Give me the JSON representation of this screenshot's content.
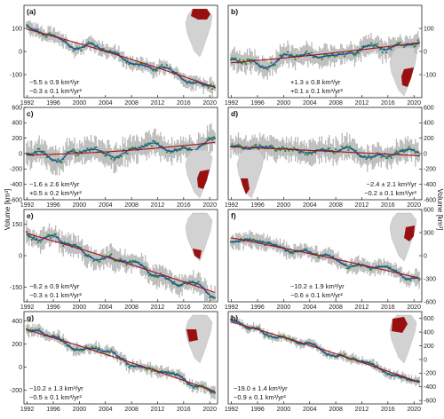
{
  "figure": {
    "y_label_left": "Volume [km³]",
    "y_label_right": "Volume [km³]"
  },
  "colors": {
    "errorbar": "#b8b8b8",
    "points": "#2e8b2e",
    "smooth": "#1f3fcf",
    "trend": "#a01010",
    "map_land": "#d2d2d2",
    "map_basin": "#9a0f0f"
  },
  "chart_data": [
    {
      "type": "scatter",
      "panel": "a",
      "label": "(a)",
      "rate_line": "−5.5 ± 0.9 km³/yr",
      "accel_line": "−0.3 ± 0.1 km³/yr²",
      "ylim": [
        -200,
        200
      ],
      "yticks": [
        -100,
        0,
        100
      ],
      "ytick_side": "left",
      "xlim": [
        1991.5,
        2021.2
      ],
      "xticks": [
        "1992",
        "1996",
        "2000",
        "2004",
        "2008",
        "2012",
        "2016",
        "2020"
      ],
      "trend": {
        "start": 100,
        "end": -160,
        "curve": -40
      },
      "amplitude": 18,
      "noise": 14,
      "err": 28,
      "inset": {
        "basin": "north",
        "pos": "top-right"
      },
      "ann_pos": "bottom-left"
    },
    {
      "type": "scatter",
      "panel": "b",
      "label": "b)",
      "rate_line": "+1.3 ± 0.8 km³/yr",
      "accel_line": "+0.1 ± 0.1 km³/yr²",
      "ylim": [
        -200,
        200
      ],
      "yticks": [
        -100,
        0,
        100
      ],
      "ytick_side": "right",
      "xlim": [
        1991.5,
        2021.2
      ],
      "xticks": [
        "1992",
        "1996",
        "2000",
        "2004",
        "2008",
        "2012",
        "2016",
        "2020"
      ],
      "trend": {
        "start": -50,
        "end": 40,
        "curve": 20
      },
      "amplitude": 25,
      "noise": 18,
      "err": 40,
      "inset": {
        "basin": "southeast",
        "pos": "bottom-right"
      },
      "ann_pos": "bottom-middle"
    },
    {
      "type": "scatter",
      "panel": "c",
      "label": "c)",
      "rate_line": "−1.6 ± 2.6 km³/yr",
      "accel_line": "+0.5 ± 0.2 km³/yr²",
      "ylim": [
        -600,
        600
      ],
      "yticks": [
        -600,
        -400,
        -200,
        0,
        200,
        400,
        600
      ],
      "ytick_side": "left",
      "xlim": [
        1991.5,
        2021.2
      ],
      "xticks": [
        "1992",
        "1996",
        "2000",
        "2004",
        "2008",
        "2012",
        "2016",
        "2020"
      ],
      "trend": {
        "start": -20,
        "end": 150,
        "curve": 120
      },
      "amplitude": 60,
      "noise": 50,
      "err": 150,
      "inset": {
        "basin": "southeast",
        "pos": "bottom-right"
      },
      "ann_pos": "bottom-left"
    },
    {
      "type": "scatter",
      "panel": "d",
      "label": "d)",
      "rate_line": "−2.4 ± 2.1 km³/yr",
      "accel_line": "−0.2 ± 0.1 km³/yr²",
      "ylim": [
        -600,
        600
      ],
      "yticks": [
        -600,
        -400,
        -200,
        0,
        200,
        400,
        600
      ],
      "ytick_side": "right",
      "xlim": [
        1991.5,
        2021.2
      ],
      "xticks": [
        "1992",
        "1996",
        "2000",
        "2004",
        "2008",
        "2012",
        "2016",
        "2020"
      ],
      "trend": {
        "start": 90,
        "end": -30,
        "curve": -10
      },
      "amplitude": 55,
      "noise": 45,
      "err": 140,
      "inset": {
        "basin": "southwest",
        "pos": "bottom-left"
      },
      "ann_pos": "bottom-right"
    },
    {
      "type": "scatter",
      "panel": "e",
      "label": "e)",
      "rate_line": "−6.2 ± 0.9 km³/yr",
      "accel_line": "−0.3 ± 0.1 km³/yr²",
      "ylim": [
        -220,
        220
      ],
      "yticks": [
        -150,
        0,
        150
      ],
      "ytick_side": "left",
      "xlim": [
        1991.5,
        2021.2
      ],
      "xticks": [
        "1992",
        "1996",
        "2000",
        "2004",
        "2008",
        "2012",
        "2016",
        "2020"
      ],
      "trend": {
        "start": 110,
        "end": -180,
        "curve": -30
      },
      "amplitude": 20,
      "noise": 18,
      "err": 45,
      "inset": {
        "basin": "south",
        "pos": "top-right"
      },
      "ann_pos": "bottom-left"
    },
    {
      "type": "scatter",
      "panel": "f",
      "label": "f)",
      "rate_line": "−10.2 ± 1.9 km³/yr",
      "accel_line": "−0.6 ± 0.1 km³/yr²",
      "ylim": [
        -600,
        600
      ],
      "yticks": [
        -600,
        -300,
        0,
        300,
        600
      ],
      "ytick_side": "right",
      "xlim": [
        1991.5,
        2021.2
      ],
      "xticks": [
        "1992",
        "1996",
        "2000",
        "2004",
        "2008",
        "2012",
        "2016",
        "2020"
      ],
      "trend": {
        "start": 240,
        "end": -300,
        "curve": -60
      },
      "amplitude": 45,
      "noise": 35,
      "err": 90,
      "inset": {
        "basin": "east",
        "pos": "top-right"
      },
      "ann_pos": "bottom-middle"
    },
    {
      "type": "scatter",
      "panel": "g",
      "label": "g)",
      "rate_line": "−10.2 ± 1.3 km³/yr",
      "accel_line": "−0.5 ± 0.1 km³/yr²",
      "ylim": [
        -320,
        480
      ],
      "yticks": [
        -200,
        0,
        200,
        400
      ],
      "ytick_side": "left",
      "xlim": [
        1991.5,
        2021.2
      ],
      "xticks": [
        "1992",
        "1996",
        "2000",
        "2004",
        "2008",
        "2012",
        "2016",
        "2020"
      ],
      "trend": {
        "start": 330,
        "end": -220,
        "curve": -50
      },
      "amplitude": 35,
      "noise": 25,
      "err": 45,
      "inset": {
        "basin": "west",
        "pos": "top-right"
      },
      "ann_pos": "bottom-left"
    },
    {
      "type": "scatter",
      "panel": "h",
      "label": "h)",
      "rate_line": "−19.0 ± 1.4 km³/yr",
      "accel_line": "−0.9 ± 0.1 km³/yr²",
      "ylim": [
        -650,
        700
      ],
      "yticks": [
        -600,
        -400,
        -200,
        0,
        200,
        400,
        600
      ],
      "ytick_side": "right",
      "xlim": [
        1991.5,
        2021.2
      ],
      "xticks": [
        "1992",
        "1996",
        "2000",
        "2004",
        "2008",
        "2012",
        "2016",
        "2020"
      ],
      "trend": {
        "start": 560,
        "end": -350,
        "curve": -120
      },
      "amplitude": 40,
      "noise": 30,
      "err": 60,
      "inset": {
        "basin": "northwest",
        "pos": "top-right"
      },
      "ann_pos": "bottom-left"
    }
  ]
}
